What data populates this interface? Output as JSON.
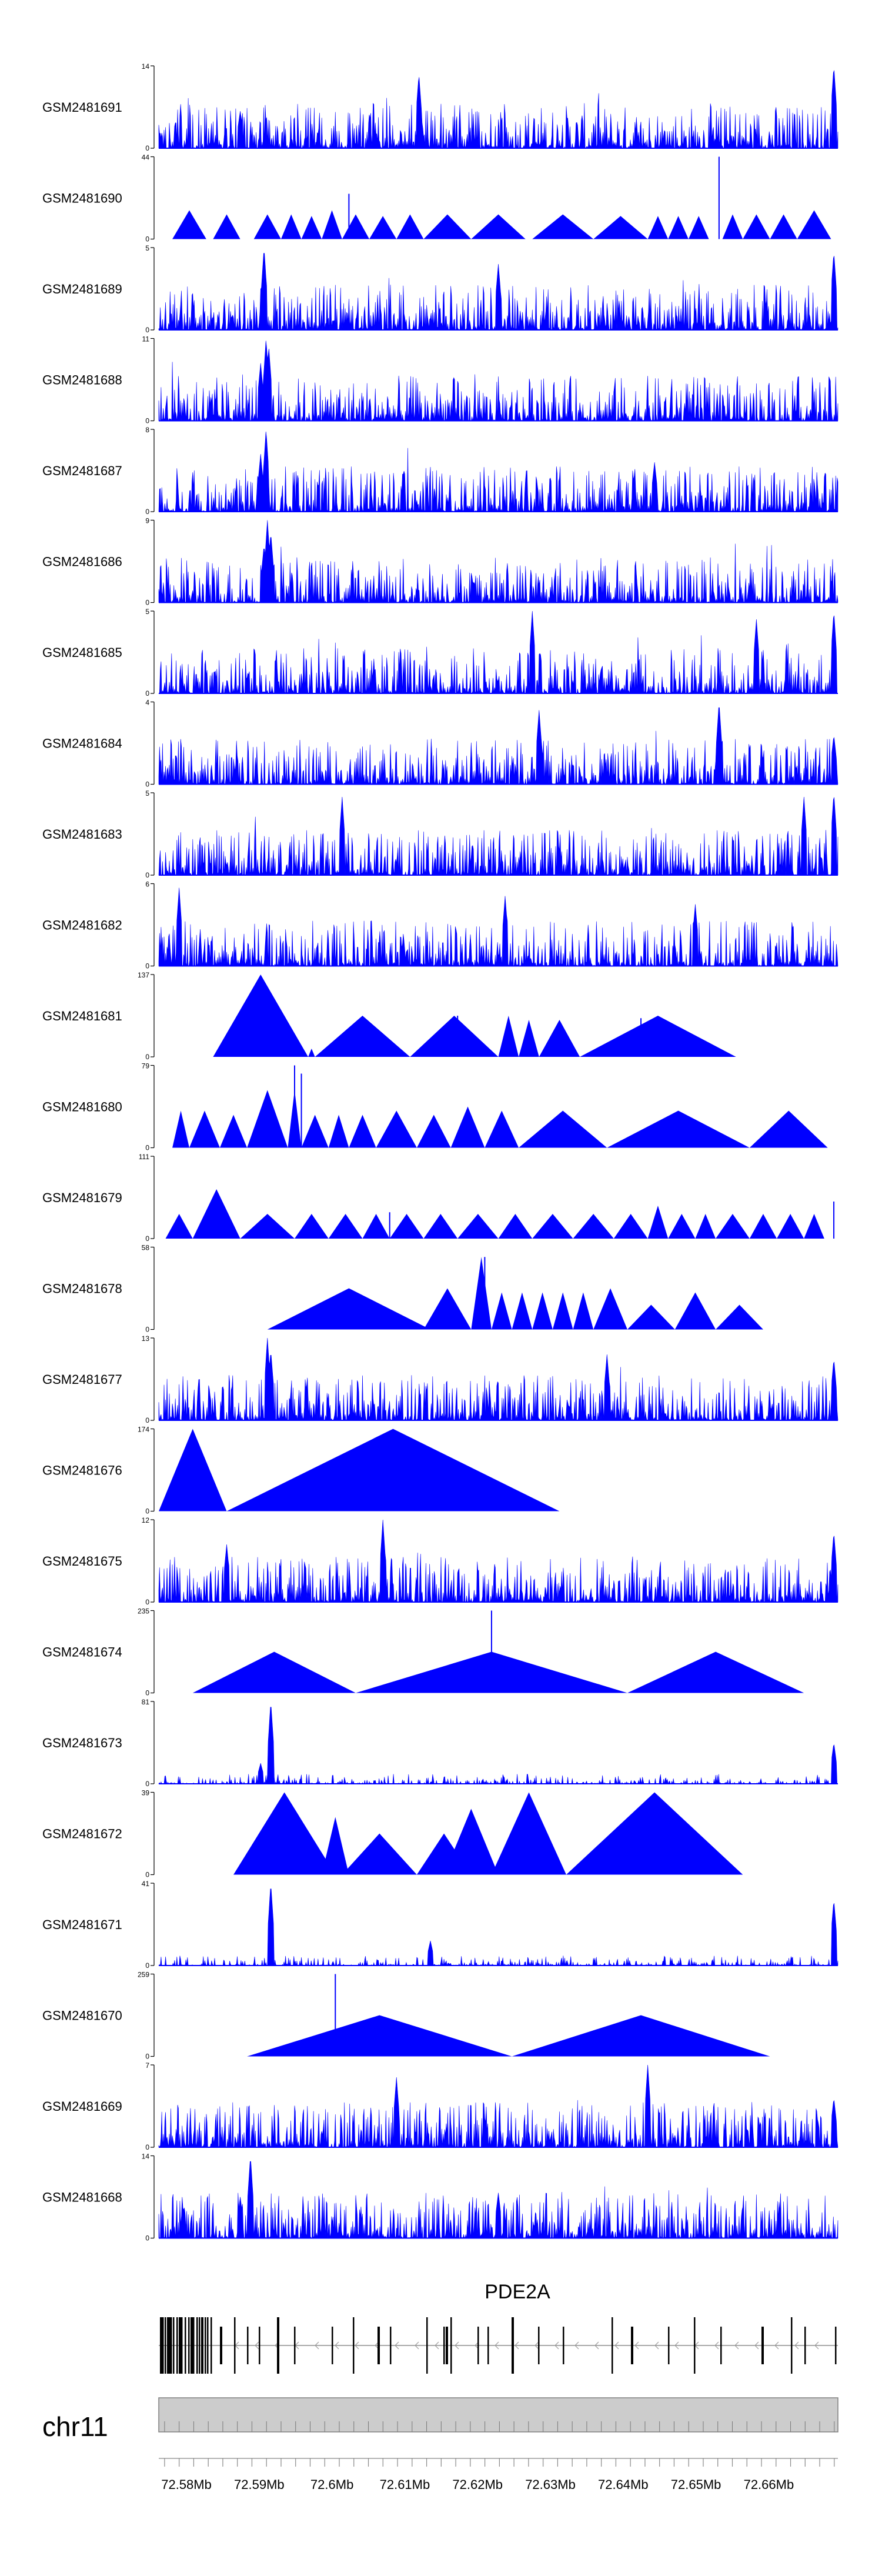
{
  "chart_data": {
    "type": "area",
    "colors": {
      "signal": "#0000ff",
      "axis": "#000000",
      "ideogram": "#cccccc",
      "gene": "#000000"
    },
    "tracks": [
      {
        "name": "GSM2481691",
        "ymax": 14,
        "style": "dense",
        "seed": 1,
        "peaks": [
          [
            0.383,
            0.9
          ],
          [
            0.994,
            1.0
          ],
          [
            0.12,
            0.45
          ]
        ]
      },
      {
        "name": "GSM2481690",
        "ymax": 44,
        "style": "sparse",
        "seed": 2,
        "peaks": [
          [
            0.825,
            1.0
          ],
          [
            0.28,
            0.55
          ]
        ],
        "tri": [
          [
            0.02,
            0.07,
            0.35
          ],
          [
            0.08,
            0.12,
            0.3
          ],
          [
            0.14,
            0.18,
            0.3
          ],
          [
            0.18,
            0.21,
            0.3
          ],
          [
            0.21,
            0.24,
            0.28
          ],
          [
            0.24,
            0.27,
            0.35
          ],
          [
            0.27,
            0.31,
            0.3
          ],
          [
            0.31,
            0.35,
            0.28
          ],
          [
            0.35,
            0.39,
            0.3
          ],
          [
            0.39,
            0.46,
            0.3
          ],
          [
            0.46,
            0.54,
            0.3
          ],
          [
            0.55,
            0.64,
            0.3
          ],
          [
            0.64,
            0.72,
            0.28
          ],
          [
            0.72,
            0.75,
            0.28
          ],
          [
            0.75,
            0.78,
            0.28
          ],
          [
            0.78,
            0.81,
            0.28
          ],
          [
            0.83,
            0.86,
            0.3
          ],
          [
            0.86,
            0.9,
            0.3
          ],
          [
            0.9,
            0.94,
            0.3
          ],
          [
            0.94,
            0.99,
            0.35
          ]
        ]
      },
      {
        "name": "GSM2481689",
        "ymax": 5,
        "style": "dense",
        "seed": 3,
        "peaks": [
          [
            0.155,
            1.0
          ],
          [
            0.994,
            0.95
          ],
          [
            0.5,
            0.8
          ]
        ]
      },
      {
        "name": "GSM2481688",
        "ymax": 11,
        "style": "dense",
        "seed": 4,
        "peaks": [
          [
            0.158,
            1.0
          ],
          [
            0.162,
            0.9
          ],
          [
            0.15,
            0.7
          ]
        ]
      },
      {
        "name": "GSM2481687",
        "ymax": 8,
        "style": "dense",
        "seed": 5,
        "peaks": [
          [
            0.158,
            1.0
          ],
          [
            0.15,
            0.7
          ],
          [
            0.73,
            0.6
          ]
        ]
      },
      {
        "name": "GSM2481686",
        "ymax": 9,
        "style": "dense",
        "seed": 6,
        "peaks": [
          [
            0.16,
            1.0
          ],
          [
            0.165,
            0.85
          ],
          [
            0.155,
            0.7
          ]
        ]
      },
      {
        "name": "GSM2481685",
        "ymax": 5,
        "style": "dense",
        "seed": 7,
        "peaks": [
          [
            0.55,
            1.0
          ],
          [
            0.994,
            1.0
          ],
          [
            0.88,
            0.9
          ]
        ]
      },
      {
        "name": "GSM2481684",
        "ymax": 4,
        "style": "dense",
        "seed": 8,
        "peaks": [
          [
            0.825,
            1.0
          ],
          [
            0.56,
            0.9
          ],
          [
            0.994,
            0.6
          ]
        ]
      },
      {
        "name": "GSM2481683",
        "ymax": 5,
        "style": "dense",
        "seed": 9,
        "peaks": [
          [
            0.27,
            0.95
          ],
          [
            0.95,
            0.95
          ],
          [
            0.994,
            1.0
          ]
        ]
      },
      {
        "name": "GSM2481682",
        "ymax": 6,
        "style": "dense",
        "seed": 10,
        "peaks": [
          [
            0.03,
            0.95
          ],
          [
            0.51,
            0.85
          ],
          [
            0.79,
            0.75
          ]
        ]
      },
      {
        "name": "GSM2481681",
        "ymax": 137,
        "style": "sparse",
        "seed": 11,
        "peaks": [
          [
            0.44,
            0.5
          ],
          [
            0.71,
            0.47
          ]
        ],
        "tri": [
          [
            0.08,
            0.22,
            1.0
          ],
          [
            0.22,
            0.23,
            0.1
          ],
          [
            0.23,
            0.37,
            0.5
          ],
          [
            0.37,
            0.5,
            0.5
          ],
          [
            0.5,
            0.53,
            0.5
          ],
          [
            0.53,
            0.56,
            0.45
          ],
          [
            0.56,
            0.62,
            0.45
          ],
          [
            0.62,
            0.85,
            0.5
          ]
        ]
      },
      {
        "name": "GSM2481680",
        "ymax": 79,
        "style": "sparse",
        "seed": 12,
        "peaks": [
          [
            0.2,
            1.0
          ],
          [
            0.21,
            0.9
          ]
        ],
        "tri": [
          [
            0.02,
            0.045,
            0.45
          ],
          [
            0.045,
            0.09,
            0.45
          ],
          [
            0.09,
            0.13,
            0.4
          ],
          [
            0.13,
            0.19,
            0.7
          ],
          [
            0.19,
            0.21,
            0.7
          ],
          [
            0.21,
            0.25,
            0.4
          ],
          [
            0.25,
            0.28,
            0.4
          ],
          [
            0.28,
            0.32,
            0.4
          ],
          [
            0.32,
            0.38,
            0.45
          ],
          [
            0.38,
            0.43,
            0.4
          ],
          [
            0.43,
            0.48,
            0.5
          ],
          [
            0.48,
            0.53,
            0.45
          ],
          [
            0.53,
            0.66,
            0.45
          ],
          [
            0.66,
            0.87,
            0.45
          ],
          [
            0.87,
            0.985,
            0.45
          ]
        ]
      },
      {
        "name": "GSM2481679",
        "ymax": 111,
        "style": "sparse",
        "seed": 13,
        "peaks": [
          [
            0.994,
            0.45
          ],
          [
            0.34,
            0.32
          ]
        ],
        "tri": [
          [
            0.01,
            0.05,
            0.3
          ],
          [
            0.05,
            0.12,
            0.6
          ],
          [
            0.12,
            0.2,
            0.3
          ],
          [
            0.2,
            0.25,
            0.3
          ],
          [
            0.25,
            0.3,
            0.3
          ],
          [
            0.3,
            0.34,
            0.3
          ],
          [
            0.34,
            0.39,
            0.3
          ],
          [
            0.39,
            0.44,
            0.3
          ],
          [
            0.44,
            0.5,
            0.3
          ],
          [
            0.5,
            0.55,
            0.3
          ],
          [
            0.55,
            0.61,
            0.3
          ],
          [
            0.61,
            0.67,
            0.3
          ],
          [
            0.67,
            0.72,
            0.3
          ],
          [
            0.72,
            0.75,
            0.4
          ],
          [
            0.75,
            0.79,
            0.3
          ],
          [
            0.79,
            0.82,
            0.3
          ],
          [
            0.82,
            0.87,
            0.3
          ],
          [
            0.87,
            0.91,
            0.3
          ],
          [
            0.91,
            0.95,
            0.3
          ],
          [
            0.95,
            0.98,
            0.3
          ]
        ]
      },
      {
        "name": "GSM2481678",
        "ymax": 58,
        "style": "sparse",
        "seed": 14,
        "peaks": [
          [
            0.48,
            0.88
          ]
        ],
        "tri": [
          [
            0.16,
            0.4,
            0.5
          ],
          [
            0.4,
            0.44,
            0.1
          ],
          [
            0.39,
            0.46,
            0.5
          ],
          [
            0.46,
            0.49,
            0.88
          ],
          [
            0.49,
            0.52,
            0.45
          ],
          [
            0.52,
            0.55,
            0.45
          ],
          [
            0.55,
            0.58,
            0.45
          ],
          [
            0.58,
            0.61,
            0.45
          ],
          [
            0.61,
            0.64,
            0.45
          ],
          [
            0.64,
            0.69,
            0.5
          ],
          [
            0.69,
            0.76,
            0.3
          ],
          [
            0.76,
            0.82,
            0.45
          ],
          [
            0.82,
            0.89,
            0.3
          ]
        ]
      },
      {
        "name": "GSM2481677",
        "ymax": 13,
        "style": "dense",
        "seed": 15,
        "peaks": [
          [
            0.16,
            1.0
          ],
          [
            0.165,
            0.85
          ],
          [
            0.994,
            0.75
          ],
          [
            0.66,
            0.8
          ]
        ]
      },
      {
        "name": "GSM2481676",
        "ymax": 174,
        "style": "sparse",
        "seed": 16,
        "tri": [
          [
            0.0,
            0.1,
            1.0
          ],
          [
            0.1,
            0.59,
            1.0
          ]
        ]
      },
      {
        "name": "GSM2481675",
        "ymax": 12,
        "style": "dense",
        "seed": 17,
        "peaks": [
          [
            0.33,
            1.0
          ],
          [
            0.994,
            0.85
          ],
          [
            0.1,
            0.7
          ]
        ]
      },
      {
        "name": "GSM2481674",
        "ymax": 235,
        "style": "sparse",
        "seed": 18,
        "peaks": [
          [
            0.49,
            1.0
          ]
        ],
        "tri": [
          [
            0.05,
            0.29,
            0.5
          ],
          [
            0.29,
            0.69,
            0.5
          ],
          [
            0.69,
            0.95,
            0.5
          ]
        ]
      },
      {
        "name": "GSM2481673",
        "ymax": 81,
        "style": "dense",
        "seed": 19,
        "quiet": true,
        "peaks": [
          [
            0.165,
            1.0
          ],
          [
            0.994,
            0.5
          ],
          [
            0.15,
            0.25
          ]
        ]
      },
      {
        "name": "GSM2481672",
        "ymax": 39,
        "style": "sparse",
        "seed": 20,
        "tri": [
          [
            0.11,
            0.26,
            1.0
          ],
          [
            0.24,
            0.28,
            0.7
          ],
          [
            0.27,
            0.38,
            0.5
          ],
          [
            0.38,
            0.46,
            0.5
          ],
          [
            0.42,
            0.5,
            0.8
          ],
          [
            0.49,
            0.6,
            1.0
          ],
          [
            0.6,
            0.86,
            1.0
          ]
        ]
      },
      {
        "name": "GSM2481671",
        "ymax": 41,
        "style": "dense",
        "seed": 21,
        "quiet": true,
        "peaks": [
          [
            0.165,
            1.0
          ],
          [
            0.994,
            0.8
          ],
          [
            0.4,
            0.3
          ]
        ]
      },
      {
        "name": "GSM2481670",
        "ymax": 259,
        "style": "sparse",
        "seed": 22,
        "peaks": [
          [
            0.26,
            1.0
          ]
        ],
        "tri": [
          [
            0.13,
            0.52,
            0.5
          ],
          [
            0.52,
            0.9,
            0.5
          ]
        ]
      },
      {
        "name": "GSM2481669",
        "ymax": 7,
        "style": "dense",
        "seed": 23,
        "peaks": [
          [
            0.72,
            1.0
          ],
          [
            0.35,
            0.85
          ],
          [
            0.994,
            0.6
          ]
        ]
      },
      {
        "name": "GSM2481668",
        "ymax": 14,
        "style": "dense",
        "seed": 24,
        "peaks": [
          [
            0.135,
            1.0
          ],
          [
            0.12,
            0.5
          ],
          [
            0.5,
            0.55
          ]
        ]
      }
    ],
    "gene": {
      "name": "PDE2A",
      "strand": "-"
    },
    "chromosome": "chr11",
    "x_ticks": [
      "72.58Mb",
      "72.59Mb",
      "72.6Mb",
      "72.61Mb",
      "72.62Mb",
      "72.63Mb",
      "72.64Mb",
      "72.65Mb",
      "72.66Mb"
    ],
    "x_tick_values": [
      72.58,
      72.59,
      72.6,
      72.61,
      72.62,
      72.63,
      72.64,
      72.65,
      72.66
    ],
    "xlim": [
      72.5762,
      72.6695
    ]
  }
}
